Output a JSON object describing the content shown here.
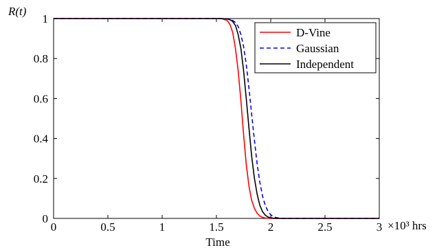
{
  "chart_data": {
    "type": "line",
    "title": "",
    "xlabel": "Time",
    "ylabel": "R(t)",
    "x_unit_label": "×10³ hrs",
    "xlim": [
      0,
      3
    ],
    "ylim": [
      0,
      1
    ],
    "x_ticks": [
      0,
      0.5,
      1,
      1.5,
      2,
      2.5,
      3
    ],
    "x_tick_labels": [
      "0",
      "0.5",
      "1",
      "1.5",
      "2",
      "2.5",
      "3"
    ],
    "y_ticks": [
      0,
      0.2,
      0.4,
      0.6,
      0.8,
      1
    ],
    "y_tick_labels": [
      "0",
      "0.2",
      "0.4",
      "0.6",
      "0.8",
      "1"
    ],
    "grid": false,
    "legend_position": "top-right",
    "x": [
      0,
      1.5,
      1.55,
      1.6,
      1.625,
      1.65,
      1.675,
      1.7,
      1.725,
      1.75,
      1.775,
      1.8,
      1.825,
      1.85,
      1.875,
      1.9,
      1.925,
      1.95,
      1.975,
      2,
      2.025,
      2.05,
      2.075,
      2.1,
      2.125,
      2.15,
      2.2,
      2.3,
      3
    ],
    "series": [
      {
        "name": "D-Vine",
        "color": "#ff0000",
        "dash": "solid",
        "values": [
          1,
          1,
          0.999,
          0.99,
          0.97,
          0.93,
          0.85,
          0.74,
          0.59,
          0.42,
          0.27,
          0.16,
          0.09,
          0.05,
          0.025,
          0.012,
          0.005,
          0.002,
          0.001,
          0,
          0,
          0,
          0,
          0,
          0,
          0,
          0,
          0,
          0
        ]
      },
      {
        "name": "Gaussian",
        "color": "#0000ff",
        "dash": "dashed",
        "values": [
          1,
          1,
          1,
          0.999,
          0.997,
          0.99,
          0.98,
          0.96,
          0.92,
          0.86,
          0.77,
          0.65,
          0.52,
          0.39,
          0.27,
          0.18,
          0.11,
          0.065,
          0.035,
          0.018,
          0.009,
          0.004,
          0.002,
          0.001,
          0,
          0,
          0,
          0,
          0
        ]
      },
      {
        "name": "Independent",
        "color": "#000000",
        "dash": "solid",
        "values": [
          1,
          1,
          1,
          0.998,
          0.994,
          0.985,
          0.965,
          0.92,
          0.85,
          0.74,
          0.6,
          0.45,
          0.31,
          0.2,
          0.12,
          0.065,
          0.033,
          0.016,
          0.007,
          0.003,
          0.001,
          0,
          0,
          0,
          0,
          0,
          0,
          0,
          0
        ]
      }
    ]
  }
}
